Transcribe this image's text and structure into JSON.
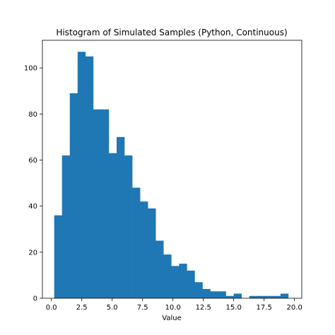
{
  "chart_data": {
    "type": "bar",
    "title": "Histogram of Simulated Samples (Python, Continuous)",
    "xlabel": "Value",
    "ylabel": "",
    "xlim": [
      -0.74,
      20.6
    ],
    "ylim": [
      0,
      112
    ],
    "xticks": [
      0.0,
      2.5,
      5.0,
      7.5,
      10.0,
      12.5,
      15.0,
      17.5,
      20.0
    ],
    "xtick_labels": [
      "0.0",
      "2.5",
      "5.0",
      "7.5",
      "10.0",
      "12.5",
      "15.0",
      "17.5",
      "20.0"
    ],
    "yticks": [
      0,
      20,
      40,
      60,
      80,
      100
    ],
    "ytick_labels": [
      "0",
      "20",
      "40",
      "60",
      "80",
      "100"
    ],
    "grid": false,
    "color": "#1f77b4",
    "bins": {
      "start": 0.23,
      "width": 0.642,
      "counts": [
        36,
        62,
        89,
        107,
        105,
        82,
        82,
        63,
        70,
        62,
        48,
        42,
        39,
        25,
        19,
        14,
        15,
        12,
        7,
        4,
        3,
        3,
        1,
        2,
        0,
        1,
        1,
        1,
        1,
        2
      ]
    }
  }
}
